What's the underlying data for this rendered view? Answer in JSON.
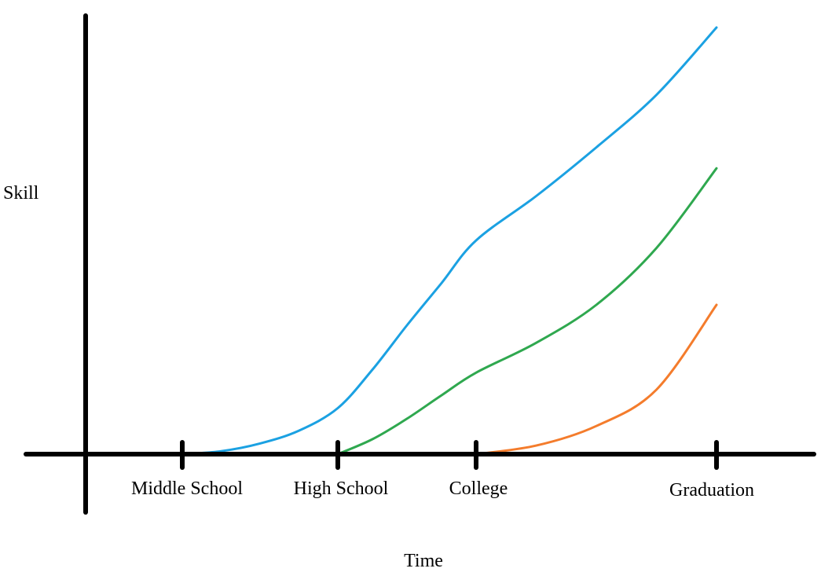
{
  "chart_data": {
    "type": "line",
    "title": "",
    "xlabel": "Time",
    "ylabel": "Skill",
    "x_categories": [
      "Middle School",
      "High School",
      "College",
      "Graduation"
    ],
    "xlim": [
      0,
      3
    ],
    "ylim": [
      0,
      10
    ],
    "grid": false,
    "legend": "none",
    "series": [
      {
        "color": "#1ba1e2",
        "x": [
          0,
          0.25,
          0.5,
          0.75,
          1,
          1.25,
          1.5,
          1.75,
          2,
          2.25,
          2.5,
          2.75,
          3
        ],
        "y": [
          0,
          0.07,
          0.25,
          0.55,
          1.08,
          1.98,
          3.02,
          4.01,
          5.01,
          6.05,
          7.19,
          8.42,
          10
        ]
      },
      {
        "color": "#2fa84f",
        "x": [
          1,
          1.25,
          1.5,
          1.75,
          2,
          2.25,
          2.5,
          2.75,
          3
        ],
        "y": [
          0,
          0.35,
          0.83,
          1.38,
          1.91,
          2.61,
          3.5,
          4.83,
          6.7
        ]
      },
      {
        "color": "#f47c2c",
        "x": [
          2,
          2.25,
          2.5,
          2.75,
          3
        ],
        "y": [
          0,
          0.2,
          0.66,
          1.51,
          3.5
        ]
      }
    ]
  }
}
